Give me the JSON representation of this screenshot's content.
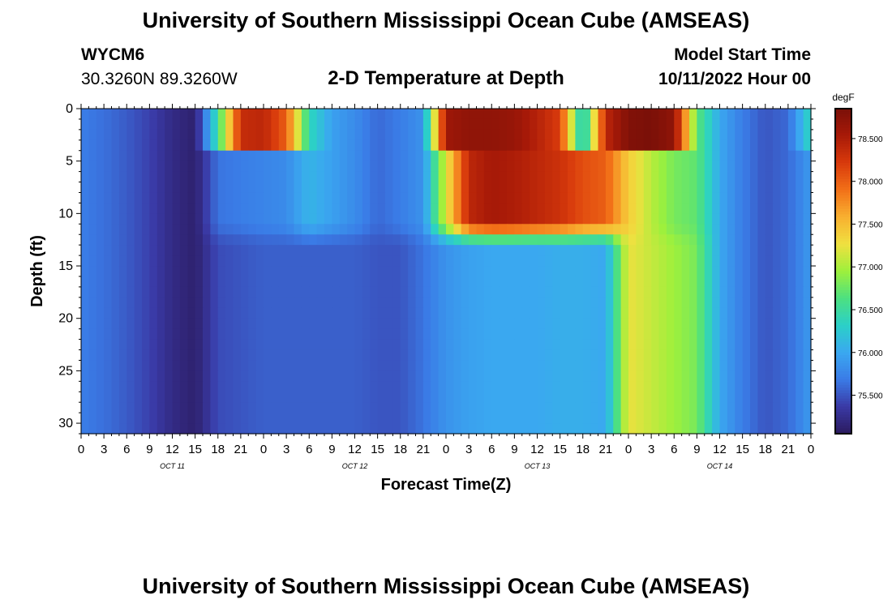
{
  "page": {
    "title": "University of Southern Mississippi Ocean Cube (AMSEAS)",
    "repeated_title": "University of Southern Mississippi Ocean Cube (AMSEAS)",
    "station_id": "WYCM6",
    "station_coords": "30.3260N  89.3260W",
    "subtitle": "2-D Temperature at Depth",
    "start_label": "Model Start Time",
    "start_value": "10/11/2022 Hour 00"
  },
  "chart_data": {
    "type": "heatmap",
    "title": "2-D Temperature at Depth",
    "xlabel": "Forecast Time(Z)",
    "ylabel": "Depth (ft)",
    "x_unit": "hours since 10/11/2022 00Z",
    "xlim": [
      0,
      96
    ],
    "ylim": [
      0,
      31
    ],
    "y_inverted": true,
    "x_tick_values": [
      0,
      3,
      6,
      9,
      12,
      15,
      18,
      21,
      24,
      27,
      30,
      33,
      36,
      39,
      42,
      45,
      48,
      51,
      54,
      57,
      60,
      63,
      66,
      69,
      72,
      75,
      78,
      81,
      84,
      87,
      90,
      93,
      96
    ],
    "x_tick_labels": [
      "0",
      "3",
      "6",
      "9",
      "12",
      "15",
      "18",
      "21",
      "0",
      "3",
      "6",
      "9",
      "12",
      "15",
      "18",
      "21",
      "0",
      "3",
      "6",
      "9",
      "12",
      "15",
      "18",
      "21",
      "0",
      "3",
      "6",
      "9",
      "12",
      "15",
      "18",
      "21",
      "0"
    ],
    "y_ticks": [
      0,
      5,
      10,
      15,
      20,
      25,
      30
    ],
    "date_labels": [
      {
        "x": 12,
        "label": "OCT 11"
      },
      {
        "x": 36,
        "label": "OCT 12"
      },
      {
        "x": 60,
        "label": "OCT 13"
      },
      {
        "x": 84,
        "label": "OCT 14"
      }
    ],
    "colorbar": {
      "unit": "degF",
      "range": [
        75.05,
        78.85
      ],
      "ticks": [
        75.5,
        76.0,
        76.5,
        77.0,
        77.5,
        78.0,
        78.5
      ],
      "tick_labels": [
        "75.500",
        "76.000",
        "76.500",
        "77.000",
        "77.500",
        "78.000",
        "78.500"
      ],
      "colors": [
        "#2b1a5e",
        "#3a3aa6",
        "#3a7be6",
        "#3aa8f0",
        "#2bd0c8",
        "#4de080",
        "#9ef03c",
        "#f0e040",
        "#f8b030",
        "#f27018",
        "#d83a0c",
        "#a81a08",
        "#7a1008"
      ]
    },
    "x_hours": [
      0,
      3,
      6,
      9,
      12,
      15,
      18,
      21,
      24,
      27,
      30,
      33,
      36,
      39,
      42,
      45,
      48,
      51,
      54,
      57,
      60,
      63,
      66,
      69,
      72,
      75,
      78,
      81,
      84,
      87,
      90,
      93,
      96
    ],
    "depths_ft": [
      0,
      1,
      2,
      3,
      4,
      5,
      6,
      7,
      8,
      9,
      10,
      11,
      12,
      13,
      14,
      15,
      16,
      17,
      18,
      19,
      20,
      21,
      22,
      23,
      24,
      25,
      26,
      27,
      28,
      29,
      30,
      31
    ],
    "surface_layer": {
      "depth_range_ft": [
        0,
        4
      ],
      "values": [
        75.7,
        75.63,
        75.53,
        75.4,
        75.22,
        75.12,
        76.5,
        78.35,
        78.4,
        78.0,
        76.4,
        75.95,
        75.8,
        75.6,
        75.7,
        75.85,
        78.6,
        78.7,
        78.7,
        78.65,
        78.45,
        78.2,
        76.15,
        78.4,
        78.8,
        78.85,
        78.7,
        76.7,
        76.0,
        75.7,
        75.5,
        75.6,
        76.4
      ]
    },
    "upper_layer": {
      "depth_range_ft": [
        4,
        12
      ],
      "values": [
        75.7,
        75.63,
        75.53,
        75.4,
        75.22,
        75.12,
        75.65,
        75.7,
        75.75,
        75.8,
        76.1,
        75.95,
        75.8,
        75.6,
        75.7,
        75.85,
        77.2,
        78.4,
        78.55,
        78.5,
        78.4,
        78.3,
        78.1,
        78.0,
        77.4,
        77.05,
        76.8,
        76.7,
        76.0,
        75.7,
        75.5,
        75.6,
        75.9
      ]
    },
    "lower_layer": {
      "depth_range_ft": [
        12,
        31
      ],
      "values": [
        75.7,
        75.63,
        75.53,
        75.4,
        75.22,
        75.12,
        75.45,
        75.5,
        75.55,
        75.55,
        75.55,
        75.55,
        75.55,
        75.5,
        75.5,
        75.65,
        75.85,
        75.95,
        76.0,
        76.0,
        76.0,
        76.05,
        76.05,
        76.0,
        77.25,
        77.1,
        76.95,
        76.8,
        76.0,
        75.7,
        75.5,
        75.6,
        75.9
      ]
    }
  }
}
